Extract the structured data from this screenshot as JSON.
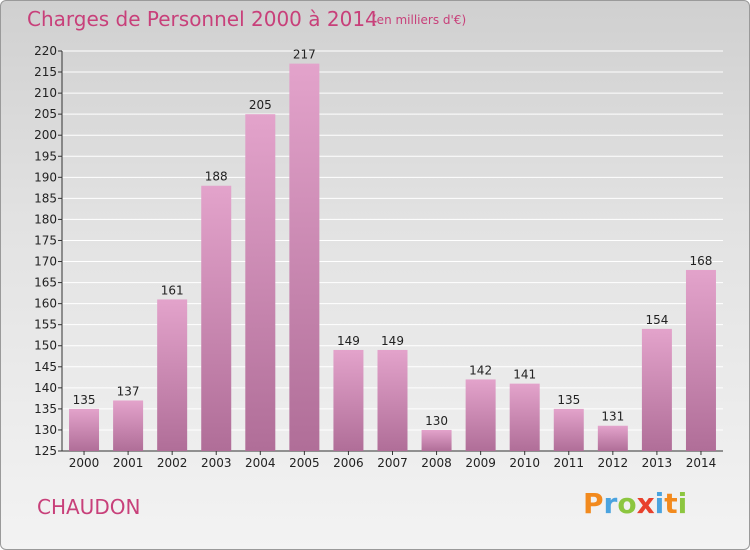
{
  "header": {
    "title": "Charges de Personnel 2000 à 2014",
    "subtitle": "(en milliers d'€)"
  },
  "footer": {
    "place": "CHAUDON",
    "logo_letters": [
      "P",
      "r",
      "o",
      "x",
      "i",
      "t",
      "i"
    ]
  },
  "colors": {
    "title": "#c8407a",
    "bar_top": "#e3a3cb",
    "bar_bottom": "#b06e98"
  },
  "chart_data": {
    "type": "bar",
    "title": "Charges de Personnel 2000 à 2014",
    "subtitle": "(en milliers d'€)",
    "categories": [
      "2000",
      "2001",
      "2002",
      "2003",
      "2004",
      "2005",
      "2006",
      "2007",
      "2008",
      "2009",
      "2010",
      "2011",
      "2012",
      "2013",
      "2014"
    ],
    "values": [
      135,
      137,
      161,
      188,
      205,
      217,
      149,
      149,
      130,
      142,
      141,
      135,
      131,
      154,
      168
    ],
    "ylim": [
      125,
      220
    ],
    "yticks": [
      125,
      130,
      135,
      140,
      145,
      150,
      155,
      160,
      165,
      170,
      175,
      180,
      185,
      190,
      195,
      200,
      205,
      210,
      215,
      220
    ],
    "grid": true,
    "legend": "none"
  }
}
